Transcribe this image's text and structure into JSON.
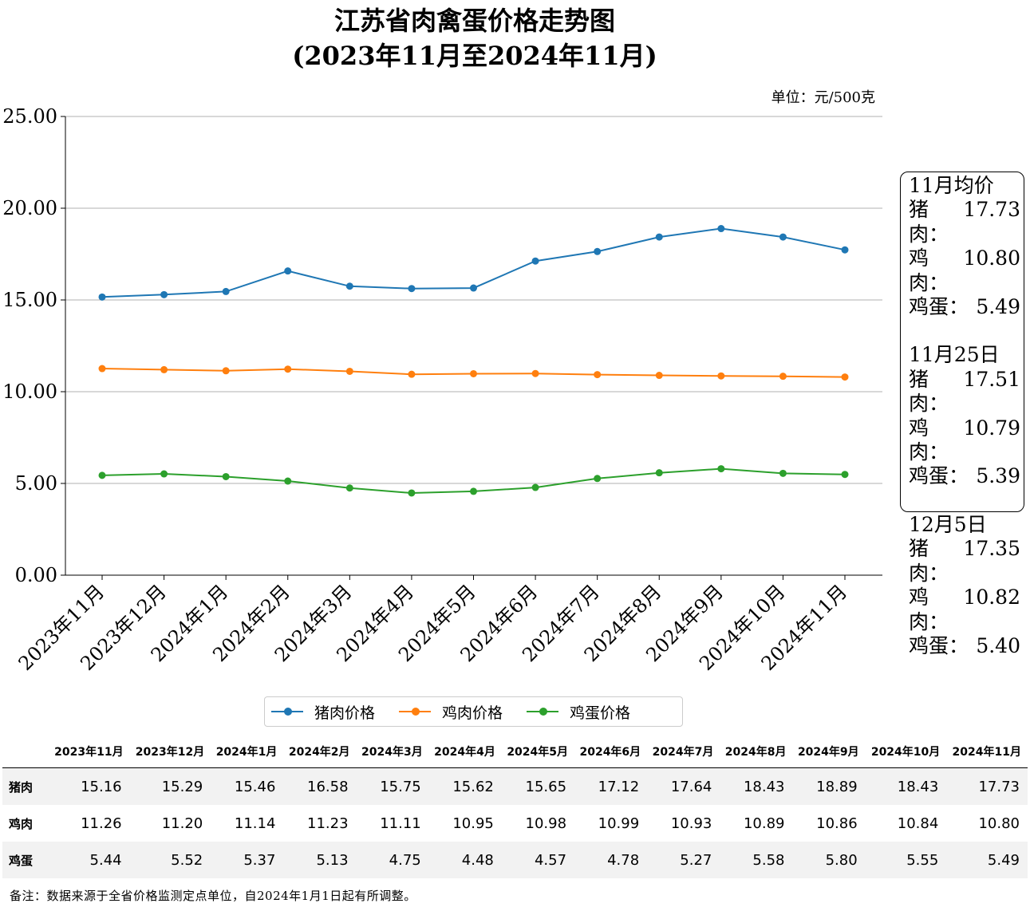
{
  "title_line1": "江苏省肉禽蛋价格走势图",
  "title_line2": "(2023年11月至2024年11月)",
  "unit": "单位：元/500克",
  "chart_data": {
    "type": "line",
    "categories": [
      "2023年11月",
      "2023年12月",
      "2024年1月",
      "2024年2月",
      "2024年3月",
      "2024年4月",
      "2024年5月",
      "2024年6月",
      "2024年7月",
      "2024年8月",
      "2024年9月",
      "2024年10月",
      "2024年11月"
    ],
    "series": [
      {
        "name": "猪肉价格",
        "color": "#1f77b4",
        "values": [
          15.16,
          15.29,
          15.46,
          16.58,
          15.75,
          15.62,
          15.65,
          17.12,
          17.64,
          18.43,
          18.89,
          18.43,
          17.73
        ]
      },
      {
        "name": "鸡肉价格",
        "color": "#ff7f0e",
        "values": [
          11.26,
          11.2,
          11.14,
          11.23,
          11.11,
          10.95,
          10.98,
          10.99,
          10.93,
          10.89,
          10.86,
          10.84,
          10.8
        ]
      },
      {
        "name": "鸡蛋价格",
        "color": "#2ca02c",
        "values": [
          5.44,
          5.52,
          5.37,
          5.13,
          4.75,
          4.48,
          4.57,
          4.78,
          5.27,
          5.58,
          5.8,
          5.55,
          5.49
        ]
      }
    ],
    "yticks": [
      "0.00",
      "5.00",
      "10.00",
      "15.00",
      "20.00",
      "25.00"
    ],
    "ylim": [
      0,
      25
    ],
    "grid": "horizontal",
    "legend_position": "bottom-center"
  },
  "infobox": [
    {
      "heading": "11月均价",
      "rows": [
        {
          "label": "猪肉：",
          "value": "17.73"
        },
        {
          "label": "鸡肉：",
          "value": "10.80"
        },
        {
          "label": "鸡蛋：",
          "value": "5.49"
        }
      ]
    },
    {
      "heading": "11月25日",
      "rows": [
        {
          "label": "猪肉：",
          "value": "17.51"
        },
        {
          "label": "鸡肉：",
          "value": "10.79"
        },
        {
          "label": "鸡蛋：",
          "value": "5.39"
        }
      ]
    },
    {
      "heading": "12月5日",
      "rows": [
        {
          "label": "猪肉：",
          "value": "17.35"
        },
        {
          "label": "鸡肉：",
          "value": "10.82"
        },
        {
          "label": "鸡蛋：",
          "value": "5.40"
        }
      ]
    }
  ],
  "table": {
    "headers": [
      "2023年11月",
      "2023年12月",
      "2024年1月",
      "2024年2月",
      "2024年3月",
      "2024年4月",
      "2024年5月",
      "2024年6月",
      "2024年7月",
      "2024年8月",
      "2024年9月",
      "2024年10月",
      "2024年11月"
    ],
    "rows": [
      {
        "name": "猪肉",
        "values": [
          "15.16",
          "15.29",
          "15.46",
          "16.58",
          "15.75",
          "15.62",
          "15.65",
          "17.12",
          "17.64",
          "18.43",
          "18.89",
          "18.43",
          "17.73"
        ]
      },
      {
        "name": "鸡肉",
        "values": [
          "11.26",
          "11.20",
          "11.14",
          "11.23",
          "11.11",
          "10.95",
          "10.98",
          "10.99",
          "10.93",
          "10.89",
          "10.86",
          "10.84",
          "10.80"
        ]
      },
      {
        "name": "鸡蛋",
        "values": [
          "5.44",
          "5.52",
          "5.37",
          "5.13",
          "4.75",
          "4.48",
          "4.57",
          "4.78",
          "5.27",
          "5.58",
          "5.80",
          "5.55",
          "5.49"
        ]
      }
    ]
  },
  "footnote": "备注：数据来源于全省价格监测定点单位，自2024年1月1日起有所调整。"
}
